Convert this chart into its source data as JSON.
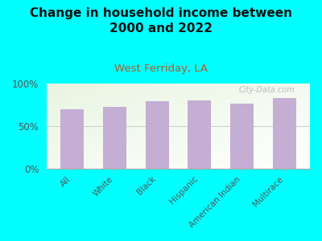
{
  "title": "Change in household income between\n2000 and 2022",
  "subtitle": "West Ferriday, LA",
  "categories": [
    "All",
    "White",
    "Black",
    "Hispanic",
    "American Indian",
    "Multirace"
  ],
  "values": [
    70,
    73,
    79,
    80,
    76,
    83
  ],
  "bar_color": "#c4aed4",
  "title_fontsize": 11,
  "subtitle_fontsize": 9.5,
  "subtitle_color": "#b05a2a",
  "background_color": "#00ffff",
  "ylim": [
    0,
    100
  ],
  "yticks": [
    0,
    50,
    100
  ],
  "ytick_labels": [
    "0%",
    "50%",
    "100%"
  ],
  "watermark": "City-Data.com"
}
